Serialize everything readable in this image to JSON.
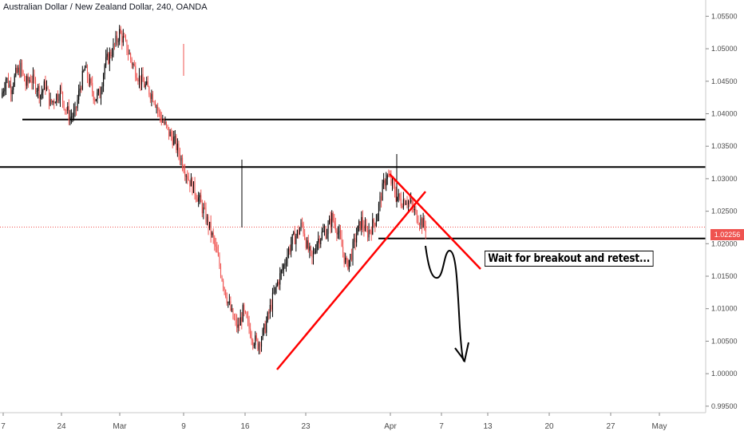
{
  "chart_data": {
    "type": "candlestick",
    "title": "Australian Dollar / New Zealand Dollar, 240, OANDA",
    "last_price_label": "1.02256",
    "annotation": "Wait for breakout and retest...",
    "y_range": [
      0.994,
      1.0575
    ],
    "y_ticks": [
      "1.05500",
      "1.05000",
      "1.04500",
      "1.04000",
      "1.03500",
      "1.03000",
      "1.02500",
      "1.02000",
      "1.01500",
      "1.01000",
      "1.00500",
      "1.00000",
      "0.99500"
    ],
    "x_ticks": [
      "7",
      "24",
      "Mar",
      "9",
      "16",
      "23",
      "Apr",
      "7",
      "13",
      "20",
      "27",
      "May"
    ],
    "support_resistance_levels": [
      1.0391,
      1.0318,
      1.0208
    ],
    "colors": {
      "up": "#26a69a",
      "down": "#ef5350",
      "bars": "#000000",
      "trendline": "#ff0000",
      "level": "#000000",
      "last_price": "#ef5350"
    },
    "series_close_path": [
      1.0425,
      1.0455,
      1.044,
      1.046,
      1.047,
      1.0445,
      1.0455,
      1.0445,
      1.043,
      1.0445,
      1.0415,
      1.0425,
      1.0435,
      1.041,
      1.0395,
      1.04,
      1.044,
      1.047,
      1.0445,
      1.0425,
      1.043,
      1.0475,
      1.049,
      1.0505,
      1.0525,
      1.051,
      1.049,
      1.047,
      1.0455,
      1.0445,
      1.0435,
      1.0425,
      1.04,
      1.0385,
      1.037,
      1.036,
      1.034,
      1.032,
      1.03,
      1.0285,
      1.027,
      1.025,
      1.023,
      1.0205,
      1.0175,
      1.014,
      1.011,
      1.0085,
      1.007,
      1.0095,
      1.0075,
      1.0055,
      1.0045,
      1.006,
      1.0085,
      1.0115,
      1.014,
      1.016,
      1.0185,
      1.0205,
      1.0215,
      1.023,
      1.0195,
      1.0175,
      1.0205,
      1.0215,
      1.022,
      1.024,
      1.0225,
      1.0195,
      1.0165,
      1.0185,
      1.0215,
      1.0235,
      1.0215,
      1.0225,
      1.024,
      1.0275,
      1.0305,
      1.0295,
      1.0275,
      1.0265,
      1.027,
      1.026,
      1.0245,
      1.0235,
      1.0225
    ]
  }
}
